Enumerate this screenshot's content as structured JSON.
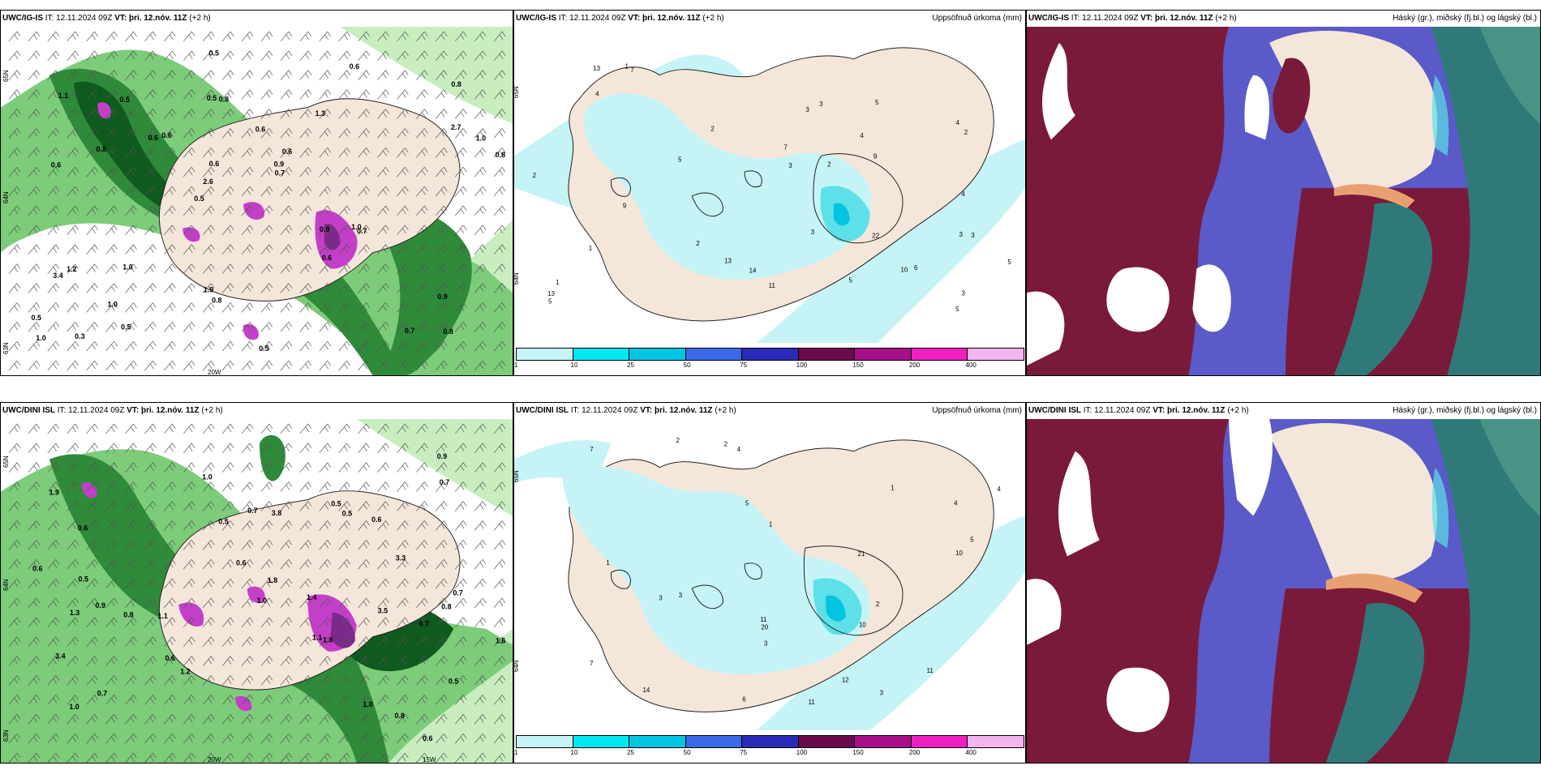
{
  "colors": {
    "land": "#f5e6da",
    "sea": "#ffffff",
    "green_light": "#c8eec0",
    "green_mid": "#7ccc7a",
    "green_dark": "#2f8a3a",
    "green_vdark": "#0f5a1f",
    "magenta": "#c43fc8",
    "purple": "#7c2a8a",
    "cyan_light": "#c6f4f6",
    "cyan": "#5ee0e8",
    "maroon": "#7a1a3a",
    "blue_cloud": "#5a5ac8",
    "teal_cloud": "#2f7a78",
    "orange_cloud": "#e8a070"
  },
  "top": {
    "wind": {
      "model": "UWC/IG-IS",
      "it_label": "IT:",
      "it_value": "12.11.2024 09Z",
      "vt_label": "VT:",
      "vt_value": "þri. 12.nóv. 11Z",
      "lead": "(+2 h)",
      "lon_label_1": "20W",
      "lat_label_1": "65N",
      "lat_label_2": "64N",
      "lat_label_3": "63N"
    },
    "precip": {
      "model": "UWC/IG-IS",
      "it_label": "IT:",
      "it_value": "12.11.2024 09Z",
      "vt_label": "VT:",
      "vt_value": "þri. 12.nóv. 11Z",
      "lead": "(+2 h)",
      "product": "Uppsöfnuð úrkoma (mm)",
      "lat_label_1": "65N",
      "lat_label_2": "64N"
    },
    "cloud": {
      "model": "UWC/IG-IS",
      "it_label": "IT:",
      "it_value": "12.11.2024 09Z",
      "vt_label": "VT:",
      "vt_value": "þri. 12.nóv. 11Z",
      "lead": "(+2 h)",
      "product": "Háský (gr.), miðský (fj.bl.) og lágský (bl.)"
    }
  },
  "bottom": {
    "wind": {
      "model": "UWC/DINI ISL",
      "it_label": "IT:",
      "it_value": "12.11.2024 09Z",
      "vt_label": "VT:",
      "vt_value": "þri. 12.nóv. 11Z",
      "lead": "(+2 h)",
      "lon_label_1": "20W",
      "lon_label_2": "15W",
      "lat_label_1": "65N",
      "lat_label_2": "64N",
      "lat_label_3": "63N"
    },
    "precip": {
      "model": "UWC/DINI ISL",
      "it_label": "IT:",
      "it_value": "12.11.2024 09Z",
      "vt_label": "VT:",
      "vt_value": "þri. 12.nóv. 11Z",
      "lead": "(+2 h)",
      "product": "Uppsöfnuð úrkoma (mm)",
      "lat_label_1": "65N",
      "lat_label_2": "64N"
    },
    "cloud": {
      "model": "UWC/DINI ISL",
      "it_label": "IT:",
      "it_value": "12.11.2024 09Z",
      "vt_label": "VT:",
      "vt_value": "þri. 12.nóv. 11Z",
      "lead": "(+2 h)",
      "product": "Háský (gr.), miðský (fj.bl.) og lágský (bl.)"
    }
  },
  "precip_legend": {
    "ticks": [
      "1",
      "10",
      "25",
      "50",
      "75",
      "100",
      "150",
      "200",
      "400"
    ],
    "colors": [
      "#c6f4f6",
      "#00e8f0",
      "#00c4e0",
      "#3a6ae8",
      "#2a2ab8",
      "#6a0a4a",
      "#a8108a",
      "#f020c0",
      "#f4b4f0"
    ]
  },
  "top_wind_labels": [
    "0.8",
    "0.6",
    "0.8",
    "0.5",
    "1.3",
    "0.3",
    "0.5",
    "0.6",
    "1.2",
    "0.6",
    "0.5",
    "1.0",
    "0.8",
    "0.6",
    "0.7",
    "1.1",
    "0.5",
    "0.8",
    "0.9",
    "2.7",
    "2.6",
    "1.9",
    "0.6",
    "0.5",
    "0.6",
    "1.0",
    "0.7",
    "0.9",
    "1.0",
    "0.5",
    "0.6",
    "0.8",
    "0.6",
    "0.5",
    "1.0",
    "0.9",
    "1.0",
    "0.8",
    "0.7",
    "3.4"
  ],
  "top_precip_labels": [
    "1",
    "2",
    "3",
    "5",
    "3",
    "6",
    "7",
    "4",
    "3",
    "1",
    "7",
    "3",
    "4",
    "11",
    "13",
    "13",
    "5",
    "4",
    "3",
    "22",
    "9",
    "5",
    "5",
    "2",
    "1",
    "2",
    "10",
    "5",
    "4",
    "9",
    "14",
    "13",
    "3",
    "2",
    "5",
    "3",
    "2"
  ],
  "bottom_wind_labels": [
    "0.6",
    "0.9",
    "1.1",
    "1.9",
    "0.5",
    "0.6",
    "0.7",
    "1.1",
    "0.6",
    "0.7",
    "0.5",
    "0.8",
    "1.2",
    "1.0",
    "1.4",
    "3.4",
    "3.5",
    "1.8",
    "0.6",
    "1.0",
    "0.9",
    "3.8",
    "3.3",
    "1.6",
    "0.7",
    "0.5",
    "0.8",
    "1.0",
    "0.6",
    "0.7",
    "1.8",
    "1.3",
    "0.6",
    "0.5",
    "0.5",
    "0.7",
    "0.8",
    "1.0"
  ],
  "bottom_precip_labels": [
    "1",
    "2",
    "1",
    "1",
    "3",
    "4",
    "5",
    "4",
    "6",
    "11",
    "11",
    "14",
    "11",
    "12",
    "21",
    "20",
    "10",
    "7",
    "5",
    "3",
    "10",
    "7",
    "3",
    "3",
    "4",
    "2",
    "2"
  ]
}
